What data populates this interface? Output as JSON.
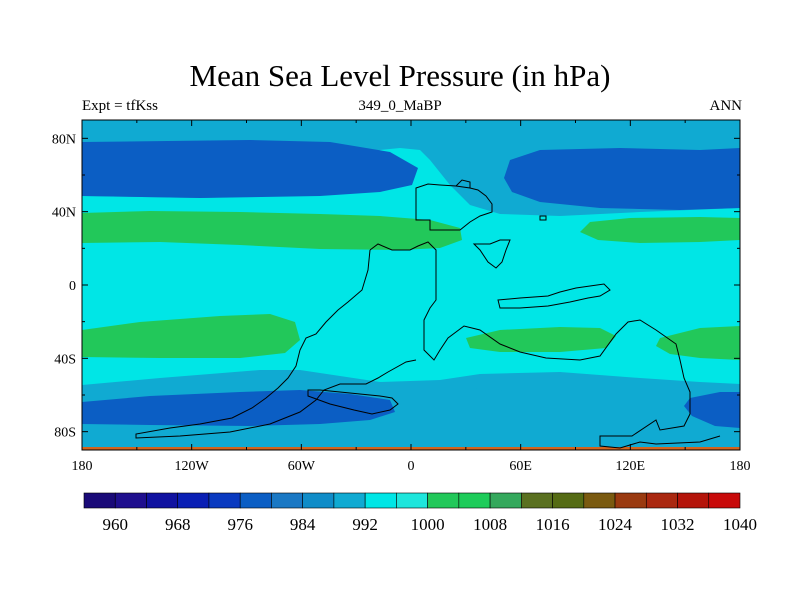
{
  "chart_data": {
    "type": "heatmap",
    "title": "Mean Sea Level Pressure (in hPa)",
    "subtitle_left": "Expt = tfKss",
    "subtitle_center": "349_0_MaBP",
    "subtitle_right": "ANN",
    "x_ticks": [
      "180",
      "120W",
      "60W",
      "0",
      "60E",
      "120E",
      "180"
    ],
    "y_ticks": [
      "80N",
      "40N",
      "0",
      "40S",
      "80S"
    ],
    "xlim": [
      -180,
      180
    ],
    "ylim": [
      -90,
      90
    ],
    "colorbar_levels": [
      960,
      964,
      968,
      972,
      976,
      980,
      984,
      988,
      992,
      996,
      1000,
      1004,
      1008,
      1012,
      1016,
      1020,
      1024,
      1028,
      1032,
      1036,
      1040
    ],
    "colorbar_labels": [
      "960",
      "968",
      "976",
      "984",
      "992",
      "1000",
      "1008",
      "1016",
      "1024",
      "1032",
      "1040"
    ],
    "colorbar_colors": [
      "#1a0a78",
      "#1f0f8e",
      "#1012a0",
      "#0a1fb4",
      "#0a3ac0",
      "#0b5ec4",
      "#1a78c4",
      "#0f8cc8",
      "#10aad2",
      "#00e6e6",
      "#1ee6dc",
      "#22c85a",
      "#1ecc5a",
      "#34a85c",
      "#5a7020",
      "#556b14",
      "#7a5a10",
      "#9a3a10",
      "#aa2810",
      "#b4140a",
      "#c80a0a"
    ],
    "field_colors": {
      "low_984": "#0b5ec4",
      "mid_988": "#10aad2",
      "base_996": "#00e6e6",
      "high_1004": "#22c85a"
    }
  }
}
